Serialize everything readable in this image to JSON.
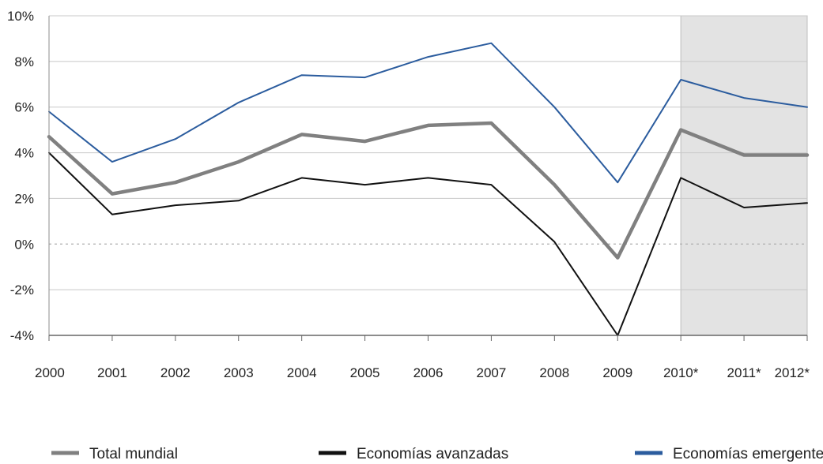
{
  "chart_data": {
    "type": "line",
    "title": "",
    "xlabel": "",
    "ylabel": "",
    "categories": [
      "2000",
      "2001",
      "2002",
      "2003",
      "2004",
      "2005",
      "2006",
      "2007",
      "2008",
      "2009",
      "2010*",
      "2011*",
      "2012*"
    ],
    "y_tick_labels": [
      "10%",
      "8%",
      "6%",
      "4%",
      "2%",
      "0%",
      "-2%",
      "-4%"
    ],
    "y_ticks": [
      10,
      8,
      6,
      4,
      2,
      0,
      -2,
      -4
    ],
    "ylim": [
      -4,
      10
    ],
    "grid": true,
    "zero_line": "dotted",
    "forecast_shading": {
      "from": "2010*",
      "to": "2012*",
      "color": "#e3e3e3"
    },
    "legend_position": "bottom",
    "series": [
      {
        "name": "Total mundial",
        "color": "#808080",
        "values": [
          4.7,
          2.2,
          2.7,
          3.6,
          4.8,
          4.5,
          5.2,
          5.3,
          2.6,
          -0.6,
          5.0,
          3.9,
          3.9
        ]
      },
      {
        "name": "Economías avanzadas",
        "color": "#111111",
        "values": [
          4.0,
          1.3,
          1.7,
          1.9,
          2.9,
          2.6,
          2.9,
          2.6,
          0.1,
          -4.0,
          2.9,
          1.6,
          1.8
        ]
      },
      {
        "name": "Economías emergentes",
        "color": "#2b5c9e",
        "values": [
          5.8,
          3.6,
          4.6,
          6.2,
          7.4,
          7.3,
          8.2,
          8.8,
          6.0,
          2.7,
          7.2,
          6.4,
          6.0
        ]
      }
    ]
  }
}
